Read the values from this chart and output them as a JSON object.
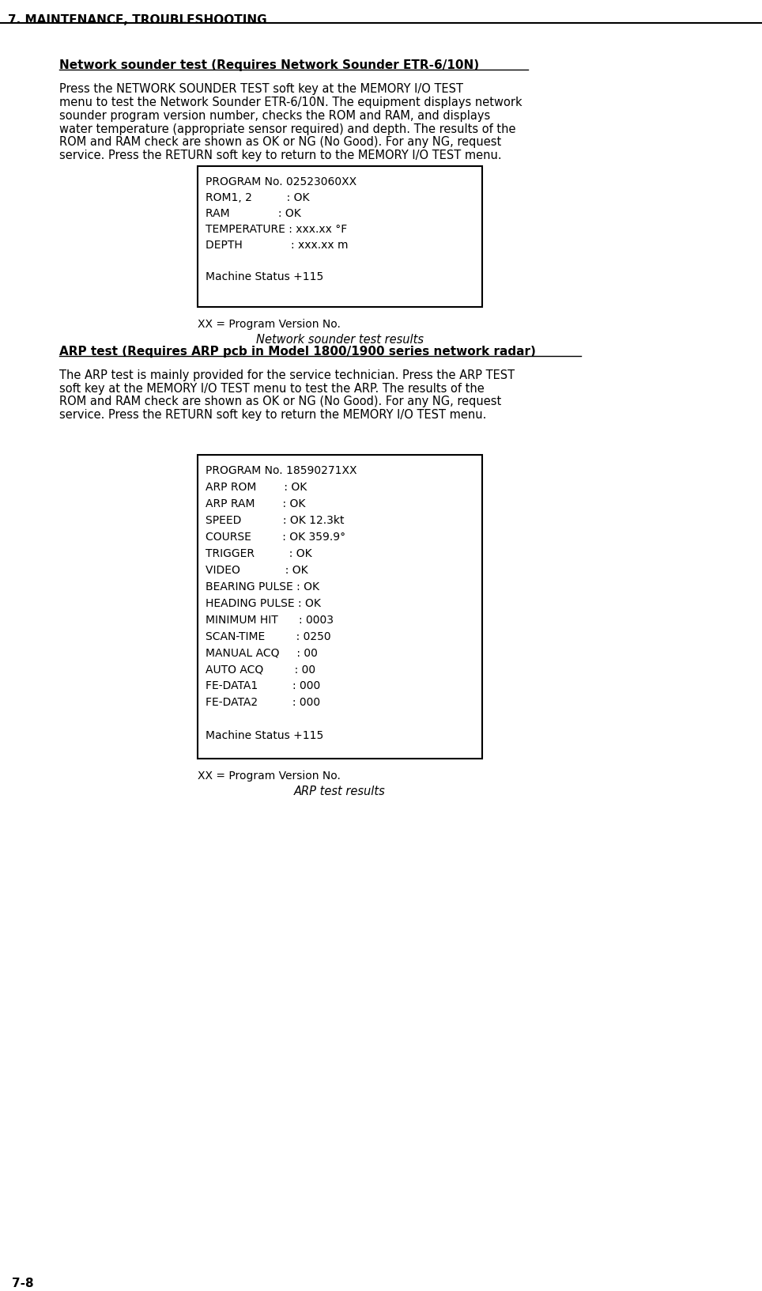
{
  "page_header": "7. MAINTENANCE, TROUBLESHOOTING",
  "page_number": "7-8",
  "background_color": "#ffffff",
  "section1_title": "Network sounder test (Requires Network Sounder ETR-6/10N)",
  "section1_body": "Press the NETWORK SOUNDER TEST soft key at the MEMORY I/O TEST\nmenu to test the Network Sounder ETR-6/10N. The equipment displays network\nsounder program version number, checks the ROM and RAM, and displays\nwater temperature (appropriate sensor required) and depth. The results of the\nROM and RAM check are shown as OK or NG (No Good). For any NG, request\nservice. Press the RETURN soft key to return to the MEMORY I/O TEST menu.",
  "box1_lines": [
    "PROGRAM No. 02523060XX",
    "ROM1, 2          : OK",
    "RAM              : OK",
    "TEMPERATURE : xxx.xx °F",
    "DEPTH              : xxx.xx m",
    "",
    "Machine Status +115"
  ],
  "box1_note": "XX = Program Version No.",
  "box1_caption": "Network sounder test results",
  "section2_title": "ARP test (Requires ARP pcb in Model 1800/1900 series network radar)",
  "section2_body": "The ARP test is mainly provided for the service technician. Press the ARP TEST\nsoft key at the MEMORY I/O TEST menu to test the ARP. The results of the\nROM and RAM check are shown as OK or NG (No Good). For any NG, request\nservice. Press the RETURN soft key to return the MEMORY I/O TEST menu.",
  "box2_lines": [
    "PROGRAM No. 18590271XX",
    "ARP ROM        : OK",
    "ARP RAM        : OK",
    "SPEED            : OK 12.3kt",
    "COURSE         : OK 359.9°",
    "TRIGGER          : OK",
    "VIDEO             : OK",
    "BEARING PULSE : OK",
    "HEADING PULSE : OK",
    "MINIMUM HIT      : 0003",
    "SCAN-TIME         : 0250",
    "MANUAL ACQ     : 00",
    "AUTO ACQ         : 00",
    "FE-DATA1          : 000",
    "FE-DATA2          : 000",
    "",
    "Machine Status +115"
  ],
  "box2_note": "XX = Program Version No.",
  "box2_caption": "ARP test results"
}
